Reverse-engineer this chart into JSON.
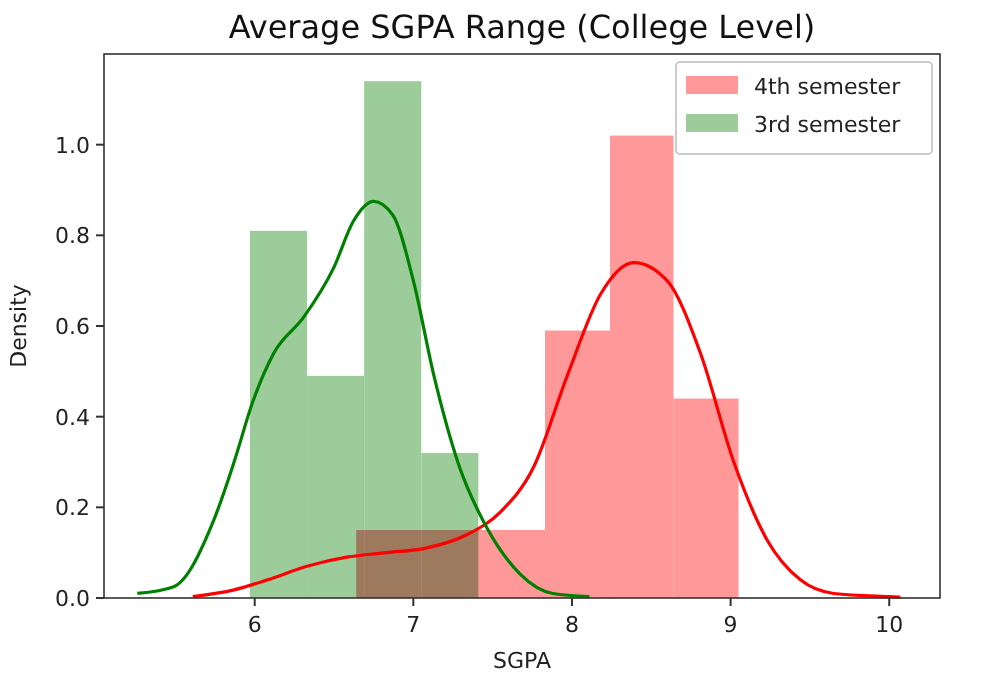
{
  "chart_data": {
    "type": "histogram",
    "title": "Average SGPA Range (College Level)",
    "xlabel": "SGPA",
    "ylabel": "Density",
    "xlim": [
      5.05,
      10.32
    ],
    "ylim": [
      0,
      1.2
    ],
    "xticks": [
      6,
      7,
      8,
      9,
      10
    ],
    "yticks": [
      {
        "value": 0,
        "label": "0.0"
      },
      {
        "value": 0.2,
        "label": "0.2"
      },
      {
        "value": 0.4,
        "label": "0.4"
      },
      {
        "value": 0.6,
        "label": "0.6"
      },
      {
        "value": 0.8,
        "label": "0.8"
      },
      {
        "value": 1.0,
        "label": "1.0"
      }
    ],
    "legend": "top right",
    "grid": false,
    "series": [
      {
        "name": "4th semester",
        "color": "#ff9999",
        "bins": [
          6.64,
          7.03,
          7.42,
          7.83,
          8.24,
          8.64,
          9.05
        ],
        "values": [
          0.15,
          0.15,
          0.15,
          0.59,
          1.02,
          0.44
        ]
      },
      {
        "name": "3rd semester",
        "color": "#9dcc9b",
        "bins": [
          5.97,
          6.33,
          6.69,
          7.05,
          7.41
        ],
        "values": [
          0.81,
          0.49,
          1.14,
          0.32
        ]
      },
      {
        "type": "line",
        "color": "#ff0000",
        "x": [
          5.61,
          5.87,
          6.08,
          6.33,
          6.58,
          6.83,
          7.08,
          7.34,
          7.55,
          7.76,
          7.97,
          8.18,
          8.39,
          8.6,
          8.81,
          9.02,
          9.23,
          9.44,
          9.65,
          10.0,
          10.07
        ],
        "values": [
          0.003,
          0.018,
          0.04,
          0.07,
          0.09,
          0.1,
          0.11,
          0.14,
          0.19,
          0.29,
          0.49,
          0.67,
          0.74,
          0.7,
          0.54,
          0.3,
          0.128,
          0.04,
          0.01,
          0.003,
          0.002
        ]
      },
      {
        "type": "line",
        "color": "#008000",
        "x": [
          5.26,
          5.49,
          5.74,
          5.87,
          5.99,
          6.12,
          6.31,
          6.5,
          6.62,
          6.75,
          6.87,
          7.0,
          7.13,
          7.29,
          7.46,
          7.67,
          7.88,
          8.11
        ],
        "values": [
          0.01,
          0.025,
          0.17,
          0.3,
          0.435,
          0.54,
          0.62,
          0.73,
          0.83,
          0.875,
          0.845,
          0.7,
          0.49,
          0.29,
          0.157,
          0.054,
          0.01,
          0.003
        ]
      }
    ]
  }
}
